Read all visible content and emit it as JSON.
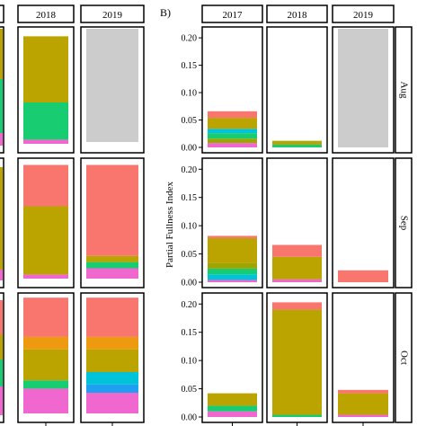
{
  "chart_data": {
    "type": "bar",
    "stacked": true,
    "colors": {
      "pink": "#f067d0",
      "blue": "#1f9ef2",
      "cyan": "#00c2d8",
      "green": "#18cc72",
      "lime": "#9ea500",
      "olive": "#bba300",
      "orange": "#ee9a10",
      "salmon": "#f8766d",
      "na_fill": "#cccccc"
    },
    "panels": [
      {
        "tag": "",
        "ylabel": "",
        "columns": [
          "2018",
          "2019"
        ],
        "left_partial_column": true,
        "rows": [
          {
            "cells": [
              {
                "segments": [
                  [
                    "pink",
                    0.02
                  ],
                  [
                    "green",
                    0.18
                  ],
                  [
                    "olive",
                    0.32
                  ]
                ]
              },
              {
                "missing": true
              }
            ]
          },
          {
            "cells": [
              {
                "segments": [
                  [
                    "pink",
                    0.02
                  ],
                  [
                    "olive",
                    0.33
                  ],
                  [
                    "salmon",
                    0.2
                  ]
                ]
              },
              {
                "segments": [
                  [
                    "pink",
                    0.05
                  ],
                  [
                    "green",
                    0.03
                  ],
                  [
                    "olive",
                    0.03
                  ],
                  [
                    "salmon",
                    0.44
                  ]
                ]
              }
            ]
          },
          {
            "cells": [
              {
                "segments": [
                  [
                    "pink",
                    0.12
                  ],
                  [
                    "green",
                    0.04
                  ],
                  [
                    "olive",
                    0.15
                  ],
                  [
                    "orange",
                    0.06
                  ],
                  [
                    "salmon",
                    0.19
                  ]
                ]
              },
              {
                "segments": [
                  [
                    "pink",
                    0.1
                  ],
                  [
                    "blue",
                    0.04
                  ],
                  [
                    "cyan",
                    0.06
                  ],
                  [
                    "olive",
                    0.11
                  ],
                  [
                    "orange",
                    0.06
                  ],
                  [
                    "salmon",
                    0.19
                  ]
                ]
              }
            ]
          }
        ]
      },
      {
        "tag": "B)",
        "ylabel": "Partial Fullness Index",
        "columns": [
          "2017",
          "2018",
          "2019"
        ],
        "rows_labels": [
          "Aug",
          "Sep",
          "Oct"
        ],
        "yticks": [
          "0.00",
          "0.05",
          "0.10",
          "0.15",
          "0.20"
        ],
        "ylim": [
          0,
          0.21
        ],
        "rows": [
          {
            "label": "Aug",
            "cells": [
              {
                "segments": [
                  [
                    "pink",
                    0.008
                  ],
                  [
                    "lime",
                    0.008
                  ],
                  [
                    "green",
                    0.01
                  ],
                  [
                    "cyan",
                    0.008
                  ],
                  [
                    "olive",
                    0.02
                  ],
                  [
                    "salmon",
                    0.012
                  ]
                ]
              },
              {
                "segments": [
                  [
                    "green",
                    0.005
                  ],
                  [
                    "olive",
                    0.005
                  ],
                  [
                    "lime",
                    0.002
                  ]
                ]
              },
              {
                "missing": true
              }
            ]
          },
          {
            "label": "Sep",
            "cells": [
              {
                "segments": [
                  [
                    "pink",
                    0.004
                  ],
                  [
                    "cyan",
                    0.01
                  ],
                  [
                    "green",
                    0.01
                  ],
                  [
                    "lime",
                    0.01
                  ],
                  [
                    "olive",
                    0.044
                  ],
                  [
                    "salmon",
                    0.004
                  ]
                ]
              },
              {
                "segments": [
                  [
                    "pink",
                    0.005
                  ],
                  [
                    "olive",
                    0.04
                  ],
                  [
                    "salmon",
                    0.021
                  ]
                ]
              },
              {
                "segments": [
                  [
                    "salmon",
                    0.021
                  ]
                ]
              }
            ]
          },
          {
            "label": "Oct",
            "cells": [
              {
                "segments": [
                  [
                    "pink",
                    0.01
                  ],
                  [
                    "green",
                    0.01
                  ],
                  [
                    "olive",
                    0.022
                  ]
                ]
              },
              {
                "segments": [
                  [
                    "green",
                    0.004
                  ],
                  [
                    "olive",
                    0.186
                  ],
                  [
                    "salmon",
                    0.013
                  ]
                ]
              },
              {
                "segments": [
                  [
                    "pink",
                    0.004
                  ],
                  [
                    "olive",
                    0.038
                  ],
                  [
                    "salmon",
                    0.006
                  ]
                ]
              }
            ]
          }
        ]
      }
    ]
  }
}
